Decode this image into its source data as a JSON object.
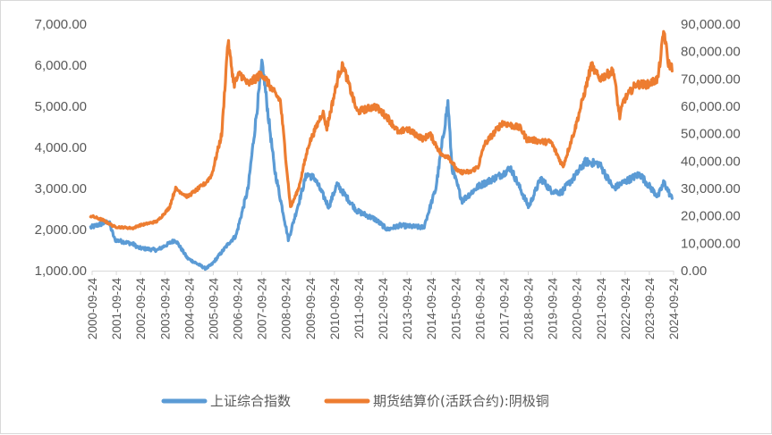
{
  "chart_data": {
    "type": "line",
    "title": "",
    "xlabel": "",
    "y_left_label": "",
    "y_right_label": "",
    "x_tick_labels": [
      "2000-09-24",
      "2001-09-24",
      "2002-09-24",
      "2003-09-24",
      "2004-09-24",
      "2005-09-24",
      "2006-09-24",
      "2007-09-24",
      "2008-09-24",
      "2009-09-24",
      "2010-09-24",
      "2011-09-24",
      "2012-09-24",
      "2013-09-24",
      "2014-09-24",
      "2015-09-24",
      "2016-09-24",
      "2017-09-24",
      "2018-09-24",
      "2019-09-24",
      "2020-09-24",
      "2021-09-24",
      "2022-09-24",
      "2023-09-24",
      "2024-09-24"
    ],
    "y_left_ticks": [
      "1,000.00",
      "2,000.00",
      "3,000.00",
      "4,000.00",
      "5,000.00",
      "6,000.00",
      "7,000.00"
    ],
    "y_right_ticks": [
      "0.00",
      "10,000.00",
      "20,000.00",
      "30,000.00",
      "40,000.00",
      "50,000.00",
      "60,000.00",
      "70,000.00",
      "80,000.00",
      "90,000.00"
    ],
    "y_left_range": [
      1000,
      7000
    ],
    "y_right_range": [
      0,
      90000
    ],
    "grid": false,
    "legend_position": "bottom",
    "series": [
      {
        "name": "上证综合指数",
        "axis": "left",
        "color": "#5b9bd5",
        "x": [
          "2000-09",
          "2001-06",
          "2001-09",
          "2002-06",
          "2002-09",
          "2003-06",
          "2004-03",
          "2004-09",
          "2005-06",
          "2005-09",
          "2006-06",
          "2006-09",
          "2007-03",
          "2007-10",
          "2008-04",
          "2008-11",
          "2009-08",
          "2009-12",
          "2010-07",
          "2010-11",
          "2011-09",
          "2012-06",
          "2012-12",
          "2013-06",
          "2014-06",
          "2014-12",
          "2015-06",
          "2015-08",
          "2016-01",
          "2016-09",
          "2017-09",
          "2018-01",
          "2018-10",
          "2019-04",
          "2019-09",
          "2020-02",
          "2020-09",
          "2021-02",
          "2021-09",
          "2022-04",
          "2022-09",
          "2023-05",
          "2023-09",
          "2024-02",
          "2024-05",
          "2024-09"
        ],
        "values": [
          2050,
          2200,
          1750,
          1650,
          1550,
          1500,
          1750,
          1300,
          1050,
          1150,
          1700,
          1850,
          3000,
          6050,
          3500,
          1750,
          3350,
          3250,
          2550,
          3100,
          2450,
          2250,
          2000,
          2100,
          2050,
          3000,
          5100,
          3500,
          2700,
          3050,
          3350,
          3500,
          2550,
          3250,
          2950,
          2900,
          3300,
          3650,
          3600,
          3000,
          3150,
          3350,
          3100,
          2800,
          3150,
          2750
        ]
      },
      {
        "name": "期货结算价(活跃合约):阴极铜",
        "axis": "right",
        "color": "#ed7d31",
        "x": [
          "2000-09",
          "2001-03",
          "2001-09",
          "2002-06",
          "2002-09",
          "2003-06",
          "2003-12",
          "2004-03",
          "2004-09",
          "2005-06",
          "2005-09",
          "2006-02",
          "2006-05",
          "2006-08",
          "2006-11",
          "2007-03",
          "2007-10",
          "2008-03",
          "2008-07",
          "2008-12",
          "2009-04",
          "2009-09",
          "2010-04",
          "2010-06",
          "2010-12",
          "2011-02",
          "2011-09",
          "2012-06",
          "2012-12",
          "2013-06",
          "2013-09",
          "2014-06",
          "2014-09",
          "2015-03",
          "2015-06",
          "2015-11",
          "2016-05",
          "2016-09",
          "2016-12",
          "2017-09",
          "2018-06",
          "2018-09",
          "2019-06",
          "2019-09",
          "2020-03",
          "2020-09",
          "2021-02",
          "2021-05",
          "2021-09",
          "2022-04",
          "2022-07",
          "2022-09",
          "2023-03",
          "2023-09",
          "2024-02",
          "2024-05",
          "2024-07",
          "2024-09"
        ],
        "values": [
          20000,
          18500,
          16000,
          15500,
          16500,
          18000,
          23000,
          30000,
          27000,
          32000,
          35000,
          50000,
          84000,
          68000,
          72000,
          68000,
          72000,
          66000,
          62000,
          23000,
          30000,
          46000,
          58000,
          52000,
          72000,
          75000,
          58000,
          60000,
          56000,
          50000,
          52000,
          48000,
          50000,
          42000,
          42000,
          36000,
          36000,
          38000,
          46000,
          54000,
          52000,
          48000,
          47000,
          47000,
          38000,
          52000,
          66000,
          75000,
          70000,
          73000,
          56000,
          62000,
          68000,
          68000,
          70000,
          88000,
          76000,
          74000
        ]
      }
    ]
  }
}
